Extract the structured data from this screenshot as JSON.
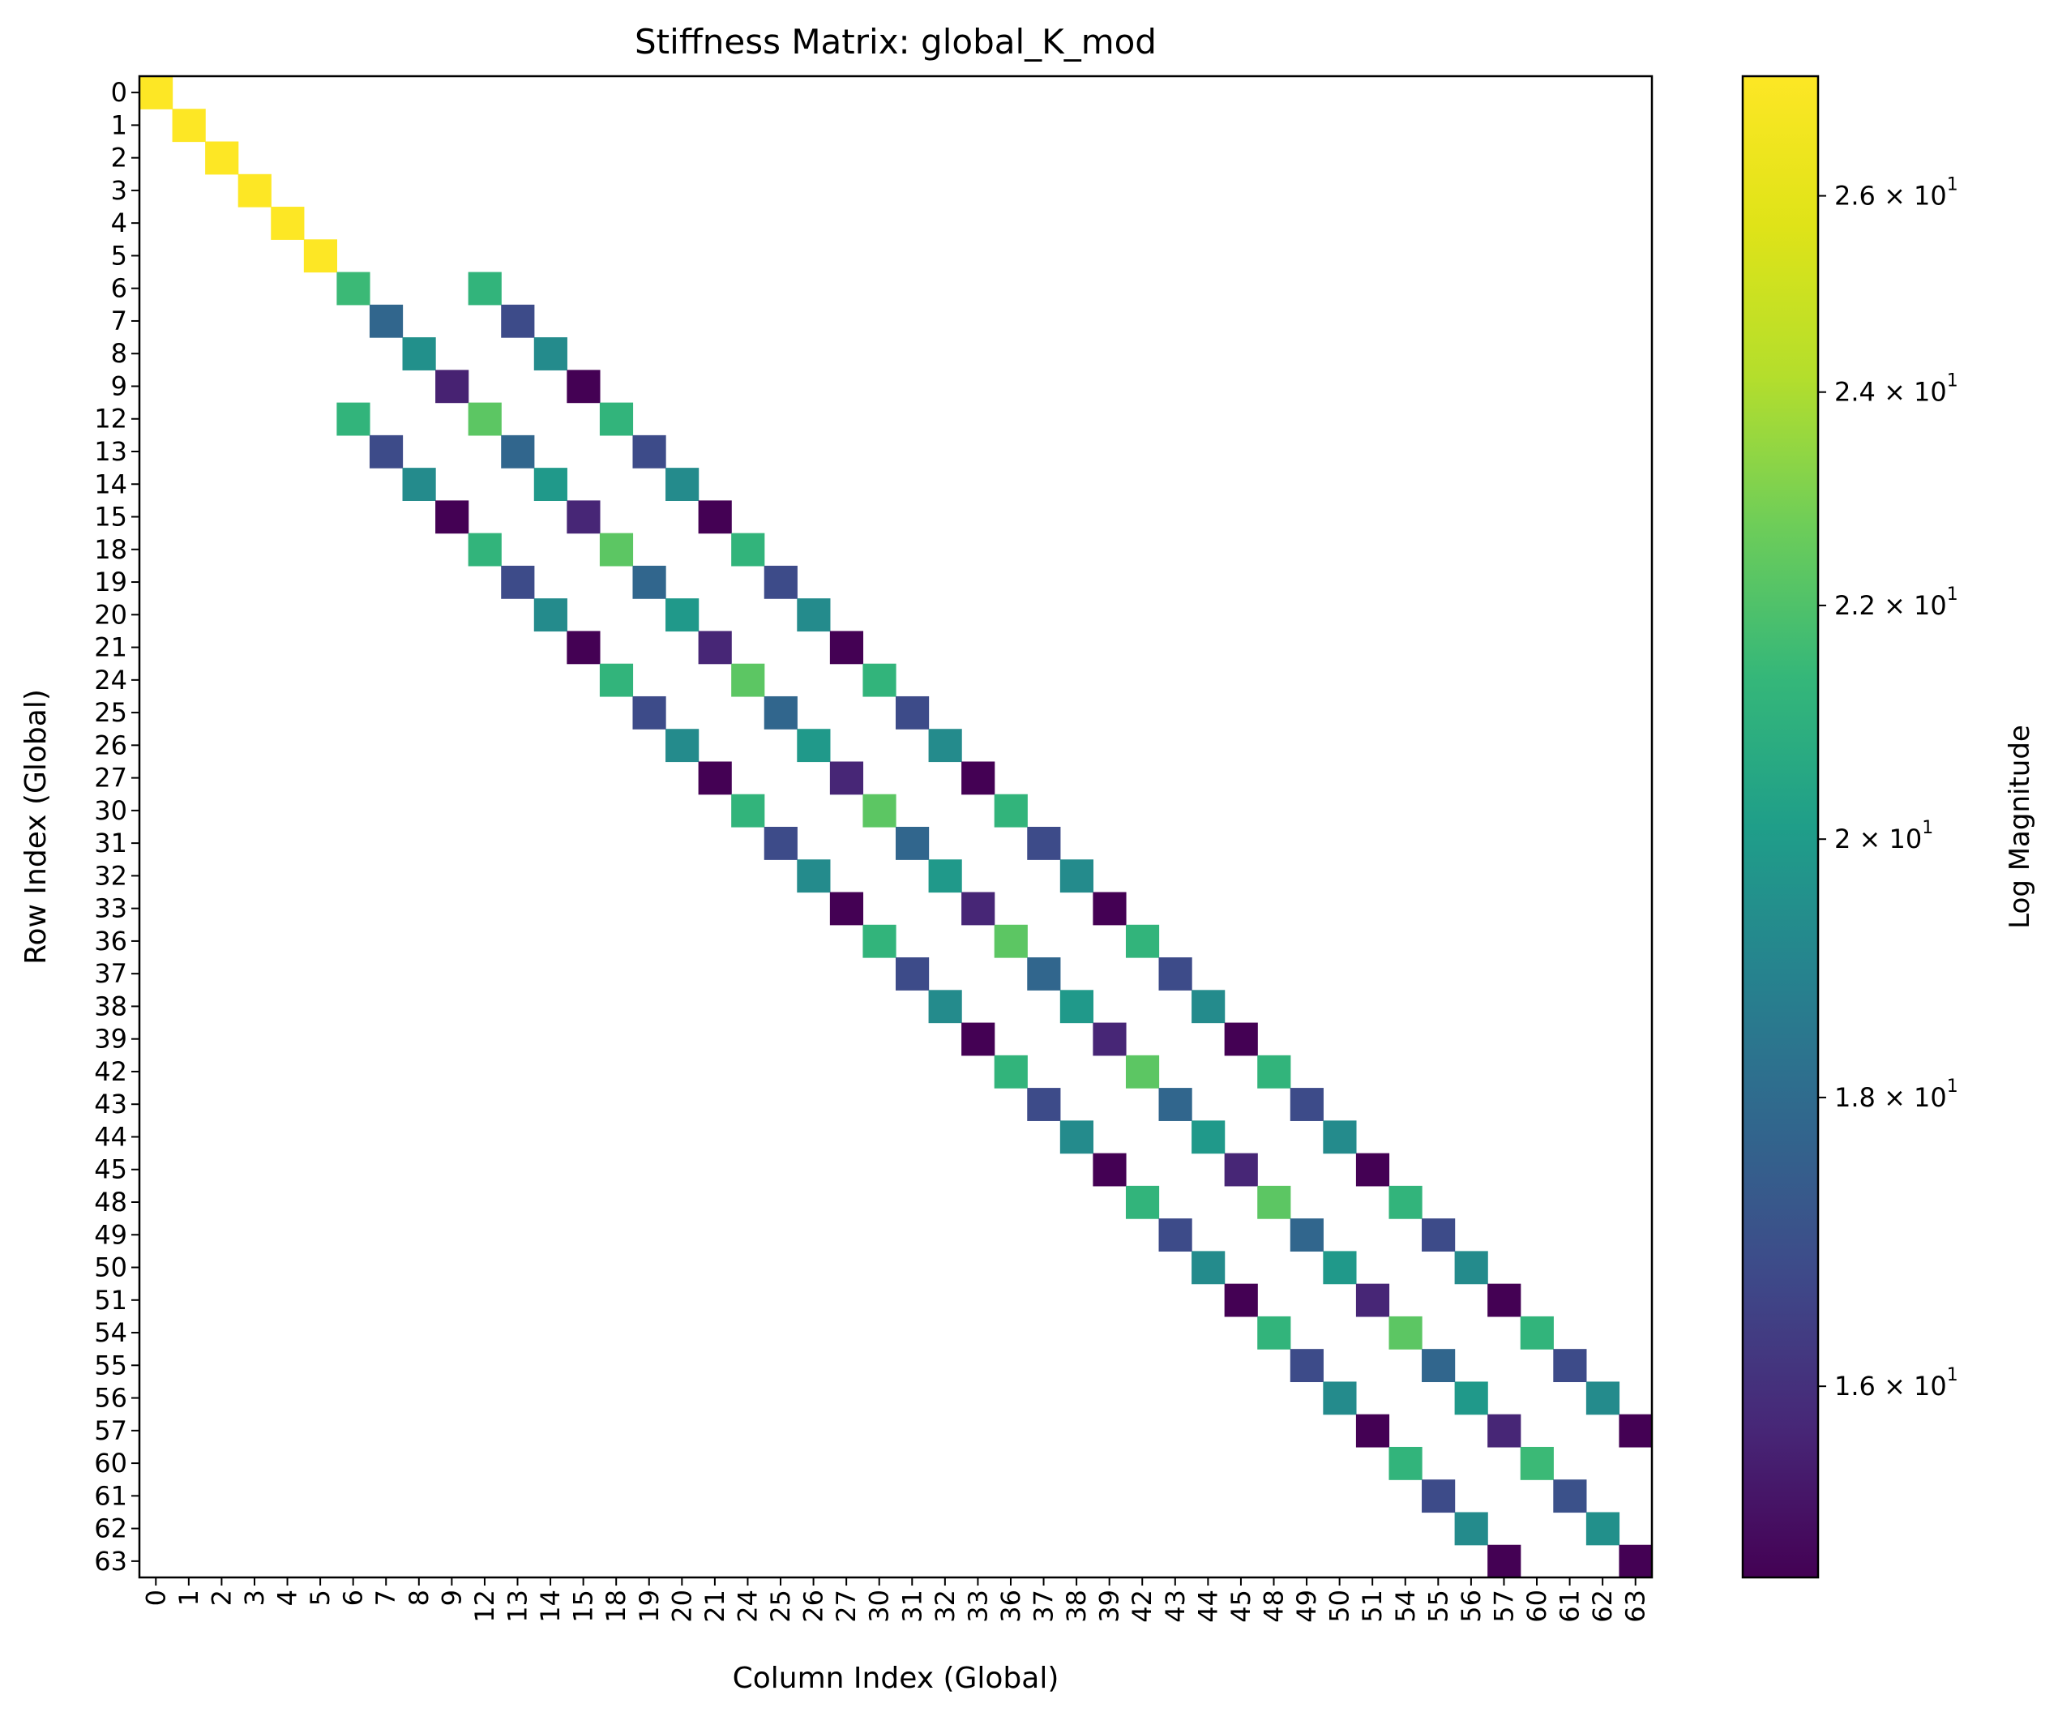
{
  "chart_data": {
    "type": "heatmap",
    "title": "Stiffness Matrix: global_K_mod",
    "xlabel": "Column Index (Global)",
    "ylabel": "Row Index (Global)",
    "colorbar_label": "Log Magnitude",
    "colormap": "viridis",
    "color_scale": "log",
    "color_range": [
      14.8,
      27.3
    ],
    "colorbar_ticks": [
      {
        "value": 16,
        "label": "1.6 × 10^1"
      },
      {
        "value": 18,
        "label": "1.8 × 10^1"
      },
      {
        "value": 20,
        "label": "2 × 10^1"
      },
      {
        "value": 22,
        "label": "2.2 × 10^1"
      },
      {
        "value": 24,
        "label": "2.4 × 10^1"
      },
      {
        "value": 26,
        "label": "2.6 × 10^1"
      }
    ],
    "background_color": "#ffffff",
    "indices": [
      "0",
      "1",
      "2",
      "3",
      "4",
      "5",
      "6",
      "7",
      "8",
      "9",
      "12",
      "13",
      "14",
      "15",
      "18",
      "19",
      "20",
      "21",
      "24",
      "25",
      "26",
      "27",
      "30",
      "31",
      "32",
      "33",
      "36",
      "37",
      "38",
      "39",
      "42",
      "43",
      "44",
      "45",
      "48",
      "49",
      "50",
      "51",
      "54",
      "55",
      "56",
      "57",
      "60",
      "61",
      "62",
      "63"
    ],
    "cells": [
      [
        0,
        0,
        27.3
      ],
      [
        1,
        1,
        27.3
      ],
      [
        2,
        2,
        27.3
      ],
      [
        3,
        3,
        27.3
      ],
      [
        4,
        4,
        27.3
      ],
      [
        5,
        5,
        27.3
      ],
      [
        6,
        6,
        21.5
      ],
      [
        6,
        12,
        21.2
      ],
      [
        7,
        7,
        17.8
      ],
      [
        7,
        13,
        16.8
      ],
      [
        8,
        8,
        19.5
      ],
      [
        8,
        14,
        19.3
      ],
      [
        9,
        9,
        15.6
      ],
      [
        9,
        15,
        14.8
      ],
      [
        12,
        6,
        21.2
      ],
      [
        12,
        12,
        22.3
      ],
      [
        12,
        18,
        21.2
      ],
      [
        13,
        7,
        16.8
      ],
      [
        13,
        13,
        17.8
      ],
      [
        13,
        19,
        16.8
      ],
      [
        14,
        8,
        19.3
      ],
      [
        14,
        14,
        19.9
      ],
      [
        14,
        20,
        19.3
      ],
      [
        15,
        9,
        14.8
      ],
      [
        15,
        15,
        15.7
      ],
      [
        15,
        21,
        14.8
      ],
      [
        18,
        12,
        21.2
      ],
      [
        18,
        18,
        22.3
      ],
      [
        18,
        24,
        21.2
      ],
      [
        19,
        13,
        16.8
      ],
      [
        19,
        19,
        17.8
      ],
      [
        19,
        25,
        16.8
      ],
      [
        20,
        14,
        19.3
      ],
      [
        20,
        20,
        19.9
      ],
      [
        20,
        26,
        19.3
      ],
      [
        21,
        15,
        14.8
      ],
      [
        21,
        21,
        15.7
      ],
      [
        21,
        27,
        14.8
      ],
      [
        24,
        18,
        21.2
      ],
      [
        24,
        24,
        22.3
      ],
      [
        24,
        30,
        21.2
      ],
      [
        25,
        19,
        16.8
      ],
      [
        25,
        25,
        17.8
      ],
      [
        25,
        31,
        16.8
      ],
      [
        26,
        20,
        19.3
      ],
      [
        26,
        26,
        19.9
      ],
      [
        26,
        32,
        19.3
      ],
      [
        27,
        21,
        14.8
      ],
      [
        27,
        27,
        15.7
      ],
      [
        27,
        33,
        14.8
      ],
      [
        30,
        24,
        21.2
      ],
      [
        30,
        30,
        22.3
      ],
      [
        30,
        36,
        21.2
      ],
      [
        31,
        25,
        16.8
      ],
      [
        31,
        31,
        17.8
      ],
      [
        31,
        37,
        16.8
      ],
      [
        32,
        26,
        19.3
      ],
      [
        32,
        32,
        19.9
      ],
      [
        32,
        38,
        19.3
      ],
      [
        33,
        27,
        14.8
      ],
      [
        33,
        33,
        15.7
      ],
      [
        33,
        39,
        14.8
      ],
      [
        36,
        30,
        21.2
      ],
      [
        36,
        36,
        22.3
      ],
      [
        36,
        42,
        21.2
      ],
      [
        37,
        31,
        16.8
      ],
      [
        37,
        37,
        17.8
      ],
      [
        37,
        43,
        16.8
      ],
      [
        38,
        32,
        19.3
      ],
      [
        38,
        38,
        19.9
      ],
      [
        38,
        44,
        19.3
      ],
      [
        39,
        33,
        14.8
      ],
      [
        39,
        39,
        15.7
      ],
      [
        39,
        45,
        14.8
      ],
      [
        42,
        36,
        21.2
      ],
      [
        42,
        42,
        22.3
      ],
      [
        42,
        48,
        21.2
      ],
      [
        43,
        37,
        16.8
      ],
      [
        43,
        43,
        17.8
      ],
      [
        43,
        49,
        16.8
      ],
      [
        44,
        38,
        19.3
      ],
      [
        44,
        44,
        19.9
      ],
      [
        44,
        50,
        19.3
      ],
      [
        45,
        39,
        14.8
      ],
      [
        45,
        45,
        15.7
      ],
      [
        45,
        51,
        14.8
      ],
      [
        48,
        42,
        21.2
      ],
      [
        48,
        48,
        22.3
      ],
      [
        48,
        54,
        21.2
      ],
      [
        49,
        43,
        16.8
      ],
      [
        49,
        49,
        17.8
      ],
      [
        49,
        55,
        16.8
      ],
      [
        50,
        44,
        19.3
      ],
      [
        50,
        50,
        19.9
      ],
      [
        50,
        56,
        19.3
      ],
      [
        51,
        45,
        14.8
      ],
      [
        51,
        51,
        15.7
      ],
      [
        51,
        57,
        14.8
      ],
      [
        54,
        48,
        21.2
      ],
      [
        54,
        54,
        22.3
      ],
      [
        54,
        60,
        21.2
      ],
      [
        55,
        49,
        16.8
      ],
      [
        55,
        55,
        17.8
      ],
      [
        55,
        61,
        16.8
      ],
      [
        56,
        50,
        19.3
      ],
      [
        56,
        56,
        19.9
      ],
      [
        56,
        62,
        19.3
      ],
      [
        57,
        51,
        14.8
      ],
      [
        57,
        57,
        15.7
      ],
      [
        57,
        63,
        14.8
      ],
      [
        60,
        54,
        21.2
      ],
      [
        60,
        60,
        21.5
      ],
      [
        61,
        55,
        16.8
      ],
      [
        61,
        61,
        17.0
      ],
      [
        62,
        56,
        19.3
      ],
      [
        62,
        62,
        19.5
      ],
      [
        63,
        57,
        14.8
      ],
      [
        63,
        63,
        14.8
      ]
    ]
  }
}
